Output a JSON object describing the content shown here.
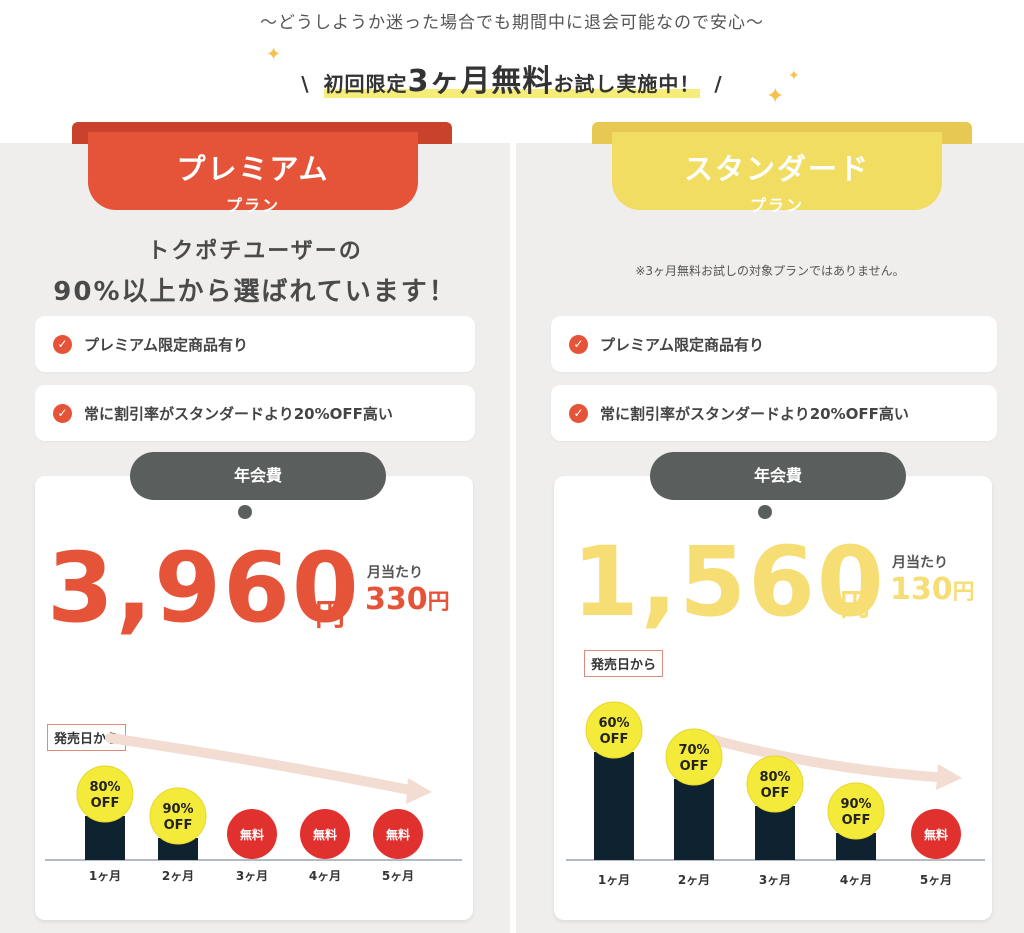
{
  "header": {
    "caption": "〜どうしようか迷った場合でも期間中に退会可能なので安心〜",
    "headline_pre": "初回限定",
    "headline_big": "3ヶ月無料",
    "headline_post": "お試し実施中！"
  },
  "premium": {
    "plan_name": "プレミアム",
    "plan_sub": "プラン",
    "tagline_1": "トクポチユーザーの",
    "tagline_2": "90%以上から選ばれています！",
    "features": [
      "プレミアム限定商品有り",
      "常に割引率がスタンダードより20%OFF高い"
    ],
    "fee_label": "年会費",
    "price": "3,960",
    "yen": "円",
    "monthly_label": "月当たり",
    "monthly_price": "330",
    "from_label": "発売日から",
    "color": "#e55439"
  },
  "standard": {
    "plan_name": "スタンダード",
    "plan_sub": "プラン",
    "note": "※3ヶ月無料お試しの対象プランではありません。",
    "features": [
      "プレミアム限定商品有り",
      "常に割引率がスタンダードより20%OFF高い"
    ],
    "fee_label": "年会費",
    "price": "1,560",
    "yen": "円",
    "monthly_label": "月当たり",
    "monthly_price": "130",
    "from_label": "発売日から",
    "color": "#f6dd74"
  },
  "chart_data": [
    {
      "type": "bar",
      "categories": [
        "1ヶ月",
        "2ヶ月",
        "3ヶ月",
        "4ヶ月",
        "5ヶ月"
      ],
      "values": [
        2,
        1,
        0,
        0,
        0
      ],
      "badges": [
        "80%\nOFF",
        "90%\nOFF",
        "無料",
        "無料",
        "無料"
      ]
    },
    {
      "type": "bar",
      "categories": [
        "1ヶ月",
        "2ヶ月",
        "3ヶ月",
        "4ヶ月",
        "5ヶ月"
      ],
      "values": [
        4,
        3,
        2,
        1,
        0
      ],
      "badges": [
        "60%\nOFF",
        "70%\nOFF",
        "80%\nOFF",
        "90%\nOFF",
        "無料"
      ]
    }
  ]
}
